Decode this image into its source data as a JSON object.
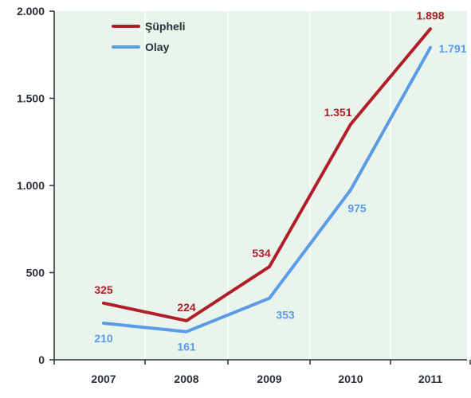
{
  "chart_data": {
    "type": "line",
    "title": "",
    "xlabel": "",
    "ylabel": "",
    "categories": [
      "2007",
      "2008",
      "2009",
      "2010",
      "2011"
    ],
    "ylim": [
      0,
      2000
    ],
    "yticks": [
      0,
      500,
      1000,
      1500,
      2000
    ],
    "ytick_labels": [
      "0",
      "500",
      "1.000",
      "1.500",
      "2.000"
    ],
    "grid": "vertical",
    "legend_position": "top-left",
    "series": [
      {
        "name": "Şüpheli",
        "color": "#b01e28",
        "values": [
          325,
          224,
          534,
          1351,
          1898
        ],
        "value_labels": [
          "325",
          "224",
          "534",
          "1.351",
          "1.898"
        ]
      },
      {
        "name": "Olay",
        "color": "#5b9be6",
        "values": [
          210,
          161,
          353,
          975,
          1791
        ],
        "value_labels": [
          "210",
          "161",
          "353",
          "975",
          "1.791"
        ]
      }
    ],
    "colors": {
      "background": "#e9f5ec",
      "axis": "#2a2f3a",
      "tick_text": "#2a2f3a"
    }
  }
}
